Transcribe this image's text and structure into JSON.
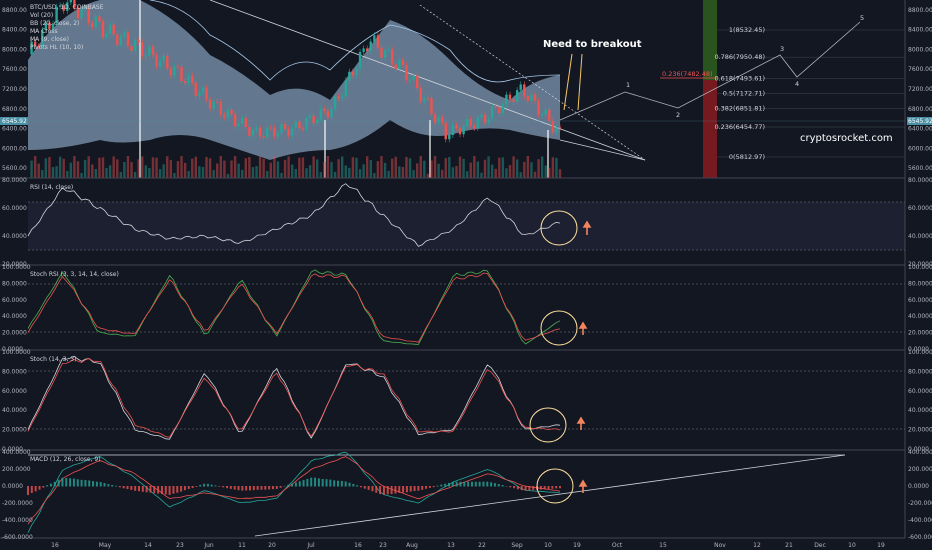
{
  "header": {
    "symbol": "BTC/USD, 1D, COINBASE",
    "legends": [
      "Vol (20)",
      "BB (20, close, 2)",
      "MA Cross",
      "MA (9, close)",
      "Pivots HL (10, 10)"
    ]
  },
  "annotations": {
    "breakout": "Need to breakout",
    "watermark": "cryptosrocket.com",
    "waves": [
      "1",
      "2",
      "3",
      "4",
      "5"
    ],
    "price_tag": "6545.92",
    "fib_red": "0.236(7482.48)"
  },
  "fib_levels": [
    {
      "label": "1(8532.45)",
      "value": 8532.45
    },
    {
      "label": "0.786(7950.48)",
      "value": 7950.48
    },
    {
      "label": "0.618(7493.61)",
      "value": 7493.61
    },
    {
      "label": "0.5(7172.71)",
      "value": 7172.71
    },
    {
      "label": "0.382(6851.81)",
      "value": 6851.81
    },
    {
      "label": "0.236(6454.77)",
      "value": 6454.77
    },
    {
      "label": "0(5812.97)",
      "value": 5812.97
    }
  ],
  "date_axis": {
    "ticks": [
      "16",
      "May",
      "14",
      "23",
      "Jun",
      "11",
      "20",
      "Jul",
      "16",
      "23",
      "Aug",
      "13",
      "22",
      "Sep",
      "10",
      "19",
      "Oct",
      "15",
      "Nov",
      "12",
      "21",
      "Dec",
      "10",
      "19"
    ]
  },
  "colors": {
    "background": "#131722",
    "up": "#26a69a",
    "down": "#ef5350",
    "bb_fill": "#a5c8e8",
    "rsi": "#d1d4dc",
    "stoch_k": "#4caf50",
    "stoch_d": "#ef5350",
    "arrow": "#f4845f",
    "circle": "#ffe0a0"
  },
  "chart_data": [
    {
      "type": "candlestick",
      "title": "BTC/USD, 1D, COINBASE",
      "ylim": [
        5400,
        9000
      ],
      "y_ticks": [
        "8800.00",
        "8400.00",
        "8000.00",
        "7600.00",
        "7200.00",
        "6800.00",
        "6400.00",
        "6000.00",
        "5600.00"
      ],
      "x": [
        "Apr 16",
        "May",
        "May 14",
        "May 23",
        "Jun",
        "Jun 11",
        "Jun 20",
        "Jul",
        "Jul 16",
        "Jul 23",
        "Aug",
        "Aug 13",
        "Aug 22",
        "Sep",
        "Sep 10"
      ],
      "close": [
        7900,
        9000,
        8400,
        8000,
        7500,
        6800,
        6300,
        6400,
        6800,
        8200,
        7500,
        6300,
        6600,
        7200,
        6300
      ]
    },
    {
      "type": "line",
      "title": "RSI (14, close)",
      "ylim": [
        20,
        80
      ],
      "y_ticks": [
        "80.0000",
        "60.0000",
        "40.0000",
        "20.0000"
      ],
      "series": [
        {
          "values": [
            40,
            75,
            60,
            45,
            38,
            40,
            35,
            45,
            55,
            78,
            55,
            33,
            45,
            68,
            40,
            50
          ]
        }
      ]
    },
    {
      "type": "line",
      "title": "Stoch RSI (3, 3, 14, 14, close)",
      "ylim": [
        0,
        100
      ],
      "y_ticks": [
        "100.0000",
        "80.0000",
        "60.0000",
        "40.0000",
        "20.0000",
        "0.0000"
      ],
      "series": [
        {
          "values": [
            25,
            95,
            20,
            15,
            90,
            15,
            85,
            15,
            95,
            90,
            10,
            5,
            90,
            95,
            5,
            35
          ]
        },
        {
          "values": [
            20,
            90,
            25,
            18,
            85,
            20,
            80,
            18,
            90,
            88,
            15,
            8,
            85,
            92,
            10,
            25
          ]
        }
      ]
    },
    {
      "type": "line",
      "title": "Stoch (14, 3, 3)",
      "ylim": [
        0,
        100
      ],
      "y_ticks": [
        "100.0000",
        "80.0000",
        "60.0000",
        "40.0000",
        "20.0000",
        "0.0000"
      ],
      "series": [
        {
          "values": [
            20,
            95,
            90,
            20,
            10,
            80,
            15,
            85,
            10,
            90,
            75,
            15,
            20,
            90,
            20,
            25
          ]
        },
        {
          "values": [
            18,
            90,
            92,
            25,
            12,
            75,
            18,
            80,
            12,
            88,
            78,
            18,
            18,
            85,
            22,
            20
          ]
        }
      ]
    },
    {
      "type": "line",
      "title": "MACD (12, 26, close, 9)",
      "ylim": [
        -600,
        400
      ],
      "y_ticks": [
        "400.0000",
        "200.0000",
        "0.0000",
        "-200.0000",
        "-400.0000",
        "-600.0000"
      ],
      "series": [
        {
          "values": [
            -550,
            200,
            350,
            100,
            -250,
            -50,
            -200,
            -150,
            300,
            400,
            -100,
            -200,
            50,
            200,
            -50,
            -80
          ]
        },
        {
          "values": [
            -450,
            100,
            300,
            150,
            -150,
            -80,
            -150,
            -120,
            200,
            350,
            0,
            -150,
            0,
            150,
            0,
            -60
          ]
        }
      ]
    }
  ]
}
